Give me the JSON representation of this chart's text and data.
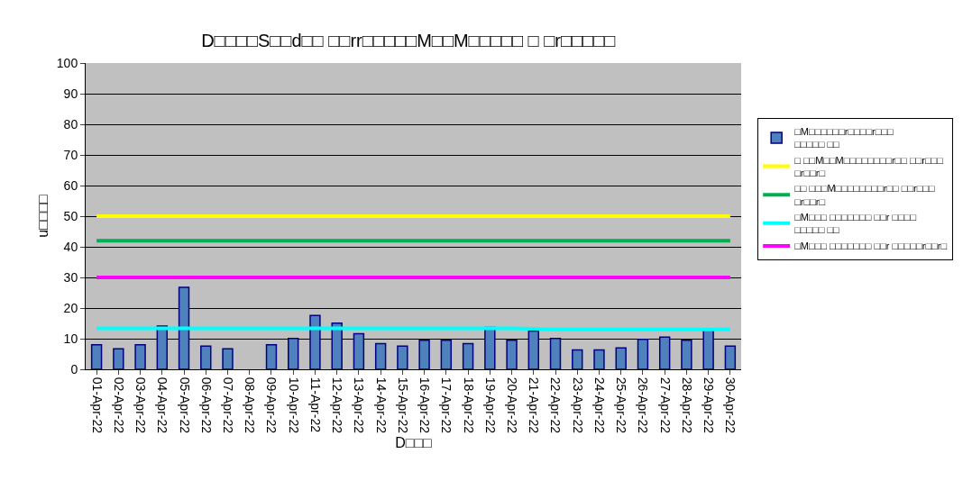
{
  "chart_data": {
    "type": "bar",
    "title": "D□□□□S□□d□□ □□rr□□□□□M□□M□□□□□ □ □r□□□□□",
    "xlabel": "D□□□",
    "ylabel": "u□□□□",
    "categories": [
      "01-Apr-22",
      "02-Apr-22",
      "03-Apr-22",
      "04-Apr-22",
      "05-Apr-22",
      "06-Apr-22",
      "07-Apr-22",
      "08-Apr-22",
      "09-Apr-22",
      "10-Apr-22",
      "11-Apr-22",
      "12-Apr-22",
      "13-Apr-22",
      "14-Apr-22",
      "15-Apr-22",
      "16-Apr-22",
      "17-Apr-22",
      "18-Apr-22",
      "19-Apr-22",
      "20-Apr-22",
      "21-Apr-22",
      "22-Apr-22",
      "23-Apr-22",
      "24-Apr-22",
      "25-Apr-22",
      "26-Apr-22",
      "27-Apr-22",
      "28-Apr-22",
      "29-Apr-22",
      "30-Apr-22"
    ],
    "series": [
      {
        "name": "□M□□□□□□r□□□□r□□□\n□□□□□ □□",
        "color": "#4f81bd",
        "values": [
          8.0,
          6.7,
          8.0,
          14.1,
          26.8,
          7.6,
          6.7,
          null,
          8.0,
          10.1,
          17.6,
          15.1,
          11.6,
          8.4,
          7.6,
          9.5,
          9.5,
          8.4,
          13.7,
          9.5,
          12.5,
          10.1,
          6.3,
          6.3,
          7.0,
          9.8,
          10.5,
          9.5,
          13.3,
          7.6
        ]
      },
      {
        "type": "line",
        "name": "□ □□M□□M□□□□□□□□r□□ □□r□□□\n□r□□r□",
        "color": "#ffff00",
        "values": [
          50,
          50,
          50,
          50,
          50,
          50,
          50,
          50,
          50,
          50,
          50,
          50,
          50,
          50,
          50,
          50,
          50,
          50,
          50,
          50,
          50,
          50,
          50,
          50,
          50,
          50,
          50,
          50,
          50,
          50
        ]
      },
      {
        "type": "line",
        "name": "□□ □□□M□□□□□□□□r□□ □□r□□□\n□r□□r□",
        "color": "#00b050",
        "values": [
          42,
          42,
          42,
          42,
          42,
          42,
          42,
          42,
          42,
          42,
          42,
          42,
          42,
          42,
          42,
          42,
          42,
          42,
          42,
          42,
          42,
          42,
          42,
          42,
          42,
          42,
          42,
          42,
          42,
          42
        ]
      },
      {
        "type": "line",
        "name": "□M□□□ □□□□□□□ □□r □□□□\n□□□□□ □□",
        "color": "#00ffff",
        "values": [
          13.4,
          13.4,
          13.4,
          13.4,
          13.4,
          13.4,
          13.4,
          13.4,
          13.4,
          13.4,
          13.4,
          13.4,
          13.4,
          13.4,
          13.4,
          13.4,
          13.4,
          13.4,
          13.4,
          13.4,
          13.2,
          13.0,
          13.0,
          13.0,
          13.0,
          13.0,
          13.0,
          13.0,
          13.0,
          13.0
        ]
      },
      {
        "type": "line",
        "name": "□M□□□ □□□□□□□ □□r □□□□□r□□r□",
        "color": "#ff00ff",
        "values": [
          30,
          30,
          30,
          30,
          30,
          30,
          30,
          30,
          30,
          30,
          30,
          30,
          30,
          30,
          30,
          30,
          30,
          30,
          30,
          30,
          30,
          30,
          30,
          30,
          30,
          30,
          30,
          30,
          30,
          30
        ]
      }
    ],
    "ylim": [
      0,
      100
    ],
    "yticks": [
      0,
      10,
      20,
      30,
      40,
      50,
      60,
      70,
      80,
      90,
      100
    ],
    "grid": "y",
    "legend": "right"
  }
}
